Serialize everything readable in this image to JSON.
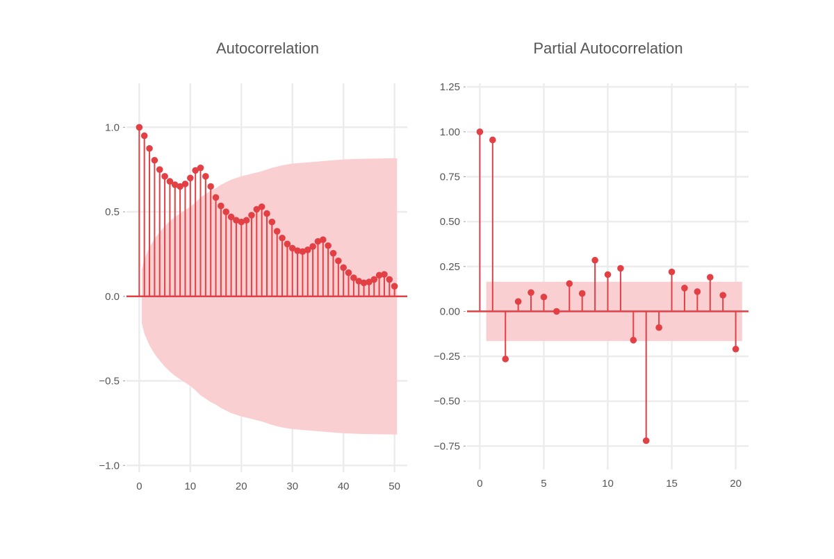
{
  "colors": {
    "stem": "#e34046",
    "band": "#f9cfd1",
    "grid": "#ececec",
    "text": "#555555"
  },
  "chart_data": [
    {
      "type": "stem",
      "title": "Autocorrelation",
      "xlabel": "",
      "ylabel": "",
      "xlim": [
        -2.5,
        52.5
      ],
      "ylim": [
        -1.04,
        1.26
      ],
      "xticks": [
        0,
        10,
        20,
        30,
        40,
        50
      ],
      "yticks": [
        -1.0,
        -0.5,
        0.0,
        0.5,
        1.0
      ],
      "ytick_labels": [
        "−1.0",
        "−0.5",
        "0.0",
        "0.5",
        "1.0"
      ],
      "grid": true,
      "x": [
        0,
        1,
        2,
        3,
        4,
        5,
        6,
        7,
        8,
        9,
        10,
        11,
        12,
        13,
        14,
        15,
        16,
        17,
        18,
        19,
        20,
        21,
        22,
        23,
        24,
        25,
        26,
        27,
        28,
        29,
        30,
        31,
        32,
        33,
        34,
        35,
        36,
        37,
        38,
        39,
        40,
        41,
        42,
        43,
        44,
        45,
        46,
        47,
        48,
        49,
        50
      ],
      "values": [
        1.0,
        0.95,
        0.875,
        0.805,
        0.75,
        0.71,
        0.68,
        0.66,
        0.65,
        0.665,
        0.7,
        0.745,
        0.76,
        0.71,
        0.65,
        0.585,
        0.535,
        0.5,
        0.47,
        0.45,
        0.44,
        0.45,
        0.48,
        0.515,
        0.53,
        0.49,
        0.44,
        0.385,
        0.345,
        0.31,
        0.285,
        0.27,
        0.265,
        0.275,
        0.295,
        0.325,
        0.335,
        0.3,
        0.255,
        0.21,
        0.17,
        0.14,
        0.11,
        0.09,
        0.08,
        0.085,
        0.1,
        0.125,
        0.13,
        0.1,
        0.06
      ],
      "confidence_band": {
        "x": [
          0.5,
          1,
          2,
          3,
          4,
          5,
          6,
          7,
          8,
          9,
          10,
          11,
          12,
          13,
          14,
          15,
          16,
          17,
          18,
          19,
          20,
          22,
          24,
          26,
          28,
          30,
          32,
          34,
          36,
          38,
          40,
          42,
          44,
          46,
          48,
          50,
          50.5
        ],
        "upper": [
          0.16,
          0.22,
          0.29,
          0.34,
          0.38,
          0.415,
          0.445,
          0.47,
          0.49,
          0.51,
          0.53,
          0.555,
          0.585,
          0.605,
          0.625,
          0.64,
          0.66,
          0.675,
          0.69,
          0.7,
          0.71,
          0.725,
          0.74,
          0.76,
          0.775,
          0.785,
          0.79,
          0.795,
          0.8,
          0.805,
          0.81,
          0.812,
          0.814,
          0.815,
          0.816,
          0.817,
          0.817
        ]
      }
    },
    {
      "type": "stem",
      "title": "Partial Autocorrelation",
      "xlabel": "",
      "ylabel": "",
      "xlim": [
        -1.0,
        21.0
      ],
      "ylim": [
        -0.88,
        1.27
      ],
      "xticks": [
        0,
        5,
        10,
        15,
        20
      ],
      "yticks": [
        -0.75,
        -0.5,
        -0.25,
        0.0,
        0.25,
        0.5,
        0.75,
        1.0,
        1.25
      ],
      "ytick_labels": [
        "−0.75",
        "−0.50",
        "−0.25",
        "0.00",
        "0.25",
        "0.50",
        "0.75",
        "1.00",
        "1.25"
      ],
      "grid": true,
      "x": [
        0,
        1,
        2,
        3,
        4,
        5,
        6,
        7,
        8,
        9,
        10,
        11,
        12,
        13,
        14,
        15,
        16,
        17,
        18,
        19,
        20
      ],
      "values": [
        1.0,
        0.955,
        -0.265,
        0.055,
        0.105,
        0.08,
        0.0,
        0.155,
        0.1,
        0.285,
        0.205,
        0.24,
        -0.16,
        -0.72,
        -0.09,
        0.22,
        0.13,
        0.11,
        0.19,
        0.09,
        -0.21
      ],
      "confidence_band": {
        "x": [
          0.5,
          20.5
        ],
        "upper": [
          0.165,
          0.165
        ]
      }
    }
  ]
}
